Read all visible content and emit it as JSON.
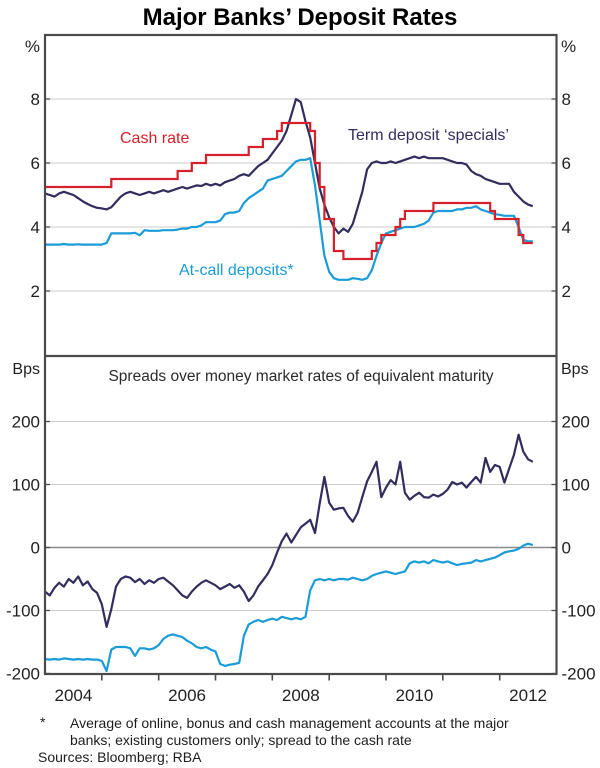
{
  "title": "Major Banks’ Deposit Rates",
  "top_panel": {
    "unit_label": "%",
    "series_labels": {
      "cash_rate": "Cash rate",
      "term_deposit_specials": "Term deposit ‘specials’",
      "at_call_deposits": "At-call deposits*"
    }
  },
  "bottom_panel": {
    "unit_label": "Bps",
    "subtitle": "Spreads over money market rates of equivalent maturity"
  },
  "footnote": {
    "marker": "*",
    "line1": "Average of online, bonus and cash management accounts at the major",
    "line2": "banks; existing customers only; spread to the cash rate",
    "sources": "Sources: Bloomberg; RBA"
  },
  "colors": {
    "red": "#d4212d",
    "navy": "#312d5e",
    "cyan": "#1a9cd8",
    "grid": "#cbcbcb",
    "zero_line": "#8a8a8a",
    "border": "#4b4b4b"
  },
  "x_axis": {
    "start_year": 2004.0,
    "step_years": 0.0833333,
    "xlim": [
      2004.0,
      2013.0
    ],
    "tick_years": [
      2005,
      2006,
      2007,
      2008,
      2009,
      2010,
      2011,
      2012
    ],
    "year_labels": [
      {
        "text": "2004",
        "t": 2004.5
      },
      {
        "text": "2006",
        "t": 2006.5
      },
      {
        "text": "2008",
        "t": 2008.5
      },
      {
        "text": "2010",
        "t": 2010.5
      },
      {
        "text": "2012",
        "t": 2012.5
      }
    ]
  },
  "chart_data": [
    {
      "type": "line",
      "panel": "top",
      "title": "Major Banks’ Deposit Rates",
      "ylabel": "%",
      "ylim": [
        0,
        10
      ],
      "yticks": [
        2,
        4,
        6,
        8
      ],
      "grid": true,
      "series": [
        {
          "name": "Term deposit ‘specials’",
          "slug": "term-deposit-specials",
          "color": "#312d5e",
          "style": "line",
          "values": [
            5.05,
            5.0,
            4.95,
            5.05,
            5.1,
            5.05,
            5.0,
            4.9,
            4.8,
            4.72,
            4.65,
            4.6,
            4.58,
            4.55,
            4.62,
            4.78,
            4.95,
            5.05,
            5.1,
            5.05,
            5.0,
            5.05,
            5.1,
            5.05,
            5.1,
            5.15,
            5.1,
            5.15,
            5.2,
            5.25,
            5.2,
            5.25,
            5.3,
            5.28,
            5.35,
            5.3,
            5.35,
            5.3,
            5.4,
            5.45,
            5.5,
            5.6,
            5.65,
            5.6,
            5.75,
            5.9,
            6.0,
            6.1,
            6.3,
            6.5,
            6.7,
            7.0,
            7.5,
            8.0,
            7.9,
            7.3,
            6.8,
            6.0,
            5.2,
            4.7,
            4.3,
            4.0,
            3.8,
            3.95,
            3.85,
            4.1,
            4.6,
            5.1,
            5.8,
            6.0,
            6.05,
            6.0,
            6.0,
            6.05,
            6.0,
            6.05,
            6.1,
            6.15,
            6.2,
            6.15,
            6.2,
            6.15,
            6.15,
            6.15,
            6.15,
            6.1,
            6.05,
            6.0,
            6.0,
            5.95,
            5.75,
            5.65,
            5.6,
            5.5,
            5.45,
            5.4,
            5.35,
            5.35,
            5.35,
            5.1,
            4.95,
            4.8,
            4.7,
            4.65
          ]
        },
        {
          "name": "At-call deposits*",
          "slug": "at-call-deposits",
          "color": "#1a9cd8",
          "style": "line",
          "values": [
            3.45,
            3.45,
            3.45,
            3.45,
            3.47,
            3.45,
            3.45,
            3.46,
            3.45,
            3.45,
            3.45,
            3.45,
            3.45,
            3.5,
            3.8,
            3.8,
            3.8,
            3.8,
            3.8,
            3.82,
            3.74,
            3.9,
            3.88,
            3.88,
            3.88,
            3.9,
            3.9,
            3.9,
            3.92,
            3.95,
            3.95,
            4.0,
            4.0,
            4.05,
            4.15,
            4.15,
            4.15,
            4.2,
            4.4,
            4.45,
            4.45,
            4.5,
            4.75,
            4.9,
            5.0,
            5.1,
            5.2,
            5.45,
            5.5,
            5.55,
            5.6,
            5.75,
            5.9,
            6.05,
            6.1,
            6.1,
            6.15,
            5.3,
            4.2,
            3.1,
            2.6,
            2.4,
            2.35,
            2.35,
            2.35,
            2.4,
            2.38,
            2.35,
            2.4,
            2.65,
            3.1,
            3.5,
            3.8,
            3.85,
            3.9,
            3.95,
            4.0,
            4.0,
            4.0,
            4.05,
            4.1,
            4.2,
            4.45,
            4.5,
            4.5,
            4.5,
            4.5,
            4.55,
            4.55,
            4.6,
            4.6,
            4.65,
            4.55,
            4.5,
            4.45,
            4.4,
            4.38,
            4.35,
            4.35,
            4.35,
            4.0,
            3.6,
            3.55,
            3.55
          ]
        },
        {
          "name": "Cash rate",
          "slug": "cash-rate",
          "color": "#d4212d",
          "style": "step",
          "values": [
            5.25,
            5.25,
            5.25,
            5.25,
            5.25,
            5.25,
            5.25,
            5.25,
            5.25,
            5.25,
            5.25,
            5.25,
            5.25,
            5.25,
            5.5,
            5.5,
            5.5,
            5.5,
            5.5,
            5.5,
            5.5,
            5.5,
            5.5,
            5.5,
            5.5,
            5.5,
            5.5,
            5.5,
            5.75,
            5.75,
            5.75,
            6.0,
            6.0,
            6.0,
            6.25,
            6.25,
            6.25,
            6.25,
            6.25,
            6.25,
            6.25,
            6.25,
            6.25,
            6.5,
            6.5,
            6.5,
            6.75,
            6.75,
            6.75,
            7.0,
            7.25,
            7.25,
            7.25,
            7.25,
            7.25,
            7.25,
            7.0,
            6.0,
            5.25,
            4.25,
            4.25,
            3.25,
            3.25,
            3.0,
            3.0,
            3.0,
            3.0,
            3.0,
            3.0,
            3.25,
            3.5,
            3.75,
            3.75,
            3.75,
            4.0,
            4.25,
            4.5,
            4.5,
            4.5,
            4.5,
            4.5,
            4.5,
            4.75,
            4.75,
            4.75,
            4.75,
            4.75,
            4.75,
            4.75,
            4.75,
            4.75,
            4.75,
            4.75,
            4.75,
            4.5,
            4.25,
            4.25,
            4.25,
            4.25,
            4.25,
            3.75,
            3.5,
            3.5,
            3.5
          ]
        }
      ]
    },
    {
      "type": "line",
      "panel": "bottom",
      "subtitle": "Spreads over money market rates of equivalent maturity",
      "ylabel": "Bps",
      "ylim": [
        -201,
        304
      ],
      "yticks": [
        200,
        100,
        0,
        -100,
        -200
      ],
      "grid": true,
      "zero_line": true,
      "series": [
        {
          "name": "Term deposit ‘specials’ spread",
          "slug": "term-deposit-spread",
          "color": "#312d5e",
          "style": "line",
          "values": [
            -70,
            -76,
            -64,
            -56,
            -62,
            -50,
            -56,
            -46,
            -60,
            -54,
            -66,
            -72,
            -90,
            -126,
            -98,
            -62,
            -50,
            -46,
            -48,
            -55,
            -50,
            -58,
            -52,
            -56,
            -50,
            -48,
            -54,
            -60,
            -68,
            -76,
            -80,
            -70,
            -62,
            -56,
            -52,
            -56,
            -60,
            -66,
            -62,
            -58,
            -64,
            -60,
            -70,
            -85,
            -76,
            -62,
            -52,
            -42,
            -28,
            -8,
            10,
            22,
            8,
            20,
            32,
            38,
            44,
            23,
            70,
            112,
            71,
            60,
            62,
            63,
            50,
            41,
            55,
            80,
            105,
            120,
            136,
            80,
            95,
            107,
            100,
            136,
            87,
            76,
            82,
            87,
            80,
            79,
            84,
            81,
            85,
            92,
            104,
            100,
            103,
            95,
            104,
            112,
            103,
            142,
            120,
            131,
            128,
            103,
            125,
            147,
            179,
            152,
            140,
            136
          ]
        },
        {
          "name": "At-call deposits* spread",
          "slug": "at-call-spread",
          "color": "#1a9cd8",
          "style": "line",
          "values": [
            -177,
            -178,
            -177,
            -178,
            -176,
            -177,
            -178,
            -177,
            -178,
            -177,
            -178,
            -178,
            -180,
            -196,
            -162,
            -158,
            -158,
            -158,
            -160,
            -172,
            -160,
            -160,
            -162,
            -160,
            -155,
            -145,
            -140,
            -138,
            -140,
            -142,
            -148,
            -152,
            -158,
            -160,
            -158,
            -162,
            -165,
            -185,
            -188,
            -186,
            -185,
            -183,
            -140,
            -122,
            -118,
            -115,
            -118,
            -115,
            -113,
            -115,
            -110,
            -112,
            -114,
            -112,
            -114,
            -110,
            -68,
            -52,
            -50,
            -52,
            -50,
            -52,
            -50,
            -50,
            -51,
            -48,
            -50,
            -52,
            -50,
            -45,
            -42,
            -40,
            -38,
            -40,
            -42,
            -40,
            -38,
            -25,
            -22,
            -24,
            -22,
            -25,
            -20,
            -22,
            -24,
            -22,
            -25,
            -28,
            -26,
            -25,
            -24,
            -20,
            -22,
            -20,
            -18,
            -16,
            -12,
            -8,
            -6,
            -5,
            -2,
            3,
            6,
            4
          ]
        }
      ]
    }
  ]
}
